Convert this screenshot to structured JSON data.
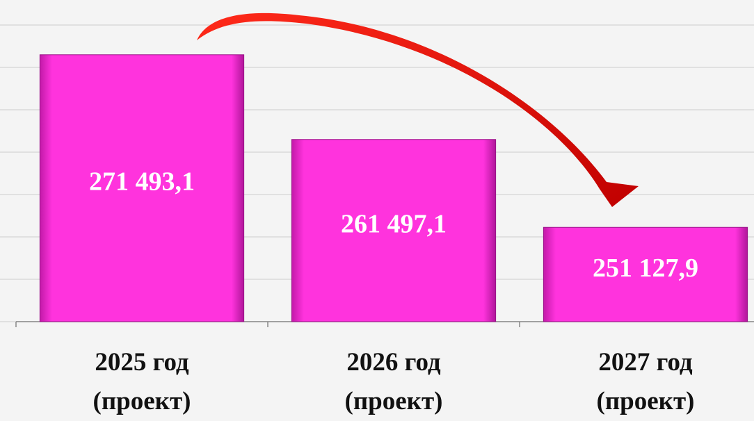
{
  "chart_data": {
    "type": "bar",
    "categories": [
      "2025 год (проект)",
      "2026 год (проект)",
      "2027 год (проект)"
    ],
    "values": [
      271493.1,
      261497.1,
      251127.9
    ],
    "value_labels": [
      "271 493,1",
      "261 497,1",
      "251 127,9"
    ],
    "color": "#ff33dd",
    "ylim": [
      240000,
      275000
    ],
    "yticks": [
      240000,
      245000,
      250000,
      255000,
      260000,
      265000,
      270000,
      275000
    ],
    "grid": true
  }
}
